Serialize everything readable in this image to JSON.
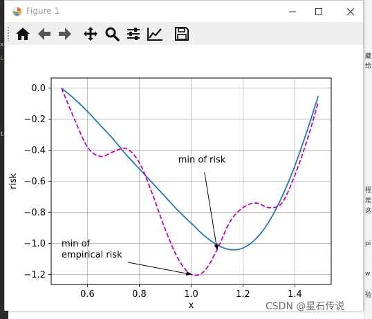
{
  "window": {
    "title": "Figure 1",
    "icon": "matplotlib-app-icon",
    "controls": [
      "minimize-icon",
      "maximize-icon",
      "close-icon"
    ]
  },
  "toolbar": {
    "buttons": [
      {
        "name": "home-button",
        "icon": "home-icon"
      },
      {
        "name": "back-button",
        "icon": "arrow-left-icon"
      },
      {
        "name": "forward-button",
        "icon": "arrow-right-icon"
      },
      {
        "name": "pan-button",
        "icon": "move-icon"
      },
      {
        "name": "zoom-button",
        "icon": "search-icon"
      },
      {
        "name": "subplots-button",
        "icon": "sliders-icon"
      },
      {
        "name": "edit-axis-button",
        "icon": "line-chart-icon"
      },
      {
        "name": "save-button",
        "icon": "floppy-disk-icon"
      }
    ]
  },
  "background": {
    "left_fragments": [
      "x",
      "c",
      "t"
    ],
    "right_fragments": [
      "藏",
      "给",
      "程",
      "是",
      "这",
      "pi",
      "w",
      "验"
    ]
  },
  "chart_data": {
    "type": "line",
    "xlabel": "x",
    "ylabel": "risk",
    "xlim": [
      0.46,
      1.54
    ],
    "ylim": [
      -1.265,
      0.065
    ],
    "xticks": [
      0.6,
      0.8,
      1.0,
      1.2,
      1.4
    ],
    "xtick_labels": [
      "0.6",
      "0.8",
      "1.0",
      "1.2",
      "1.4"
    ],
    "yticks": [
      0.0,
      -0.2,
      -0.4,
      -0.6,
      -0.8,
      -1.0,
      -1.2
    ],
    "ytick_labels": [
      "0.0",
      "−0.2",
      "−0.4",
      "−0.6",
      "−0.8",
      "−1.0",
      "−1.2"
    ],
    "grid": true,
    "series": [
      {
        "style": "solid",
        "color": "#1f77b4",
        "x": [
          0.5,
          0.55,
          0.6,
          0.65,
          0.7,
          0.75,
          0.8,
          0.85,
          0.9,
          0.95,
          1.0,
          1.05,
          1.1,
          1.15,
          1.2,
          1.25,
          1.3,
          1.35,
          1.4,
          1.45,
          1.49
        ],
        "y": [
          0.0,
          -0.07,
          -0.15,
          -0.24,
          -0.33,
          -0.43,
          -0.52,
          -0.61,
          -0.7,
          -0.79,
          -0.87,
          -0.95,
          -1.01,
          -1.04,
          -1.03,
          -0.97,
          -0.86,
          -0.7,
          -0.5,
          -0.26,
          -0.05
        ]
      },
      {
        "style": "dashed",
        "color": "#bf00bf",
        "x": [
          0.5,
          0.55,
          0.6,
          0.65,
          0.7,
          0.75,
          0.8,
          0.85,
          0.9,
          0.95,
          1.0,
          1.05,
          1.1,
          1.15,
          1.2,
          1.25,
          1.3,
          1.35,
          1.4,
          1.45,
          1.49
        ],
        "y": [
          0.0,
          -0.2,
          -0.38,
          -0.44,
          -0.41,
          -0.39,
          -0.48,
          -0.68,
          -0.91,
          -1.1,
          -1.2,
          -1.18,
          -1.04,
          -0.86,
          -0.77,
          -0.74,
          -0.77,
          -0.74,
          -0.56,
          -0.32,
          -0.09
        ]
      }
    ],
    "annotations": [
      {
        "lines": [
          "min of risk"
        ],
        "target": [
          1.1,
          -1.04
        ],
        "text_anchor": [
          0.95,
          -0.48
        ]
      },
      {
        "lines": [
          "min of",
          "empirical risk"
        ],
        "target": [
          1.0,
          -1.2
        ],
        "text_anchor": [
          0.5,
          -1.02
        ]
      }
    ]
  },
  "watermark": "CSDN @星石传说"
}
